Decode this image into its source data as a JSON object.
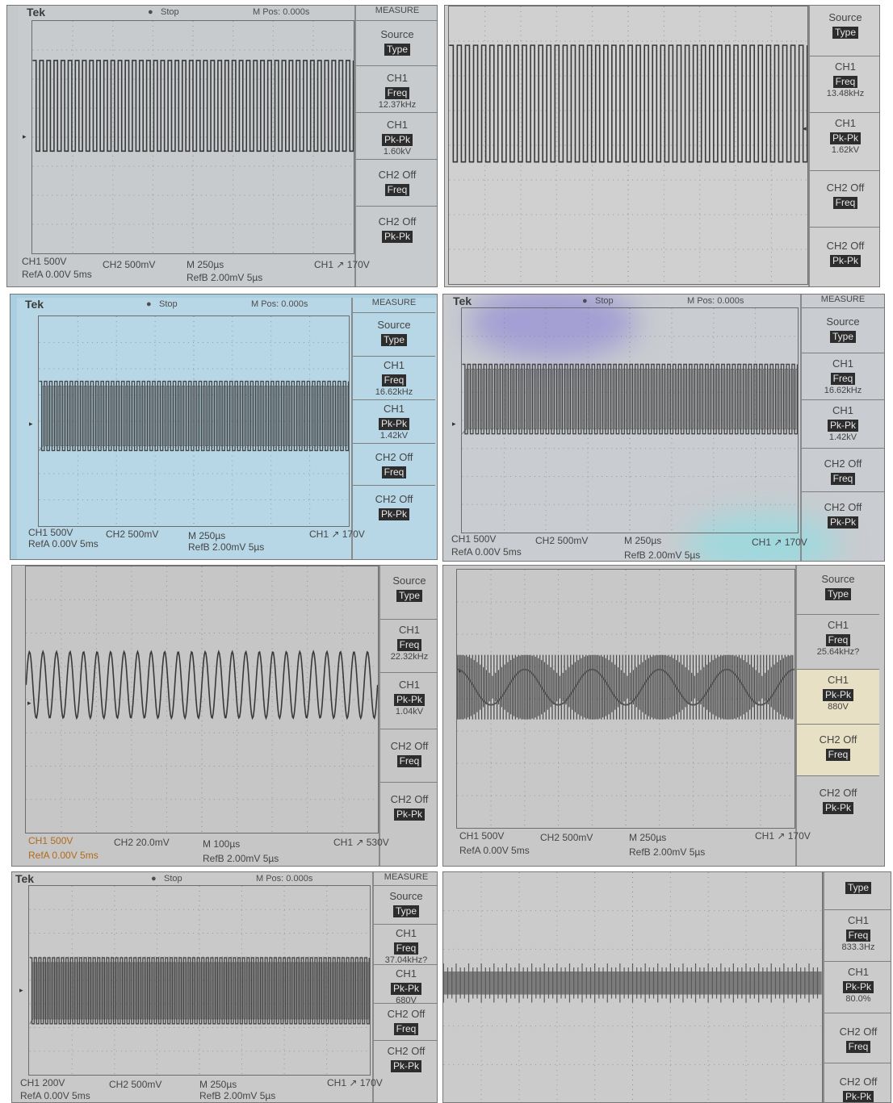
{
  "colors": {
    "panel_grey": "#c9c9c9",
    "panel_blue": "#b7d6e6",
    "trace": "#383838",
    "orange_text": "#b26a1c"
  },
  "panels": [
    {
      "brand": "Tek",
      "mode": "Stop",
      "mpos": "M Pos: 0.000s",
      "menu_title": "MEASURE",
      "menu": [
        {
          "label": "Source",
          "inv": "Type",
          "value": ""
        },
        {
          "label": "CH1",
          "inv": "Freq",
          "value": "12.37kHz"
        },
        {
          "label": "CH1",
          "inv": "Pk-Pk",
          "value": "1.60kV"
        },
        {
          "label": "CH2 Off",
          "inv": "Freq",
          "value": ""
        },
        {
          "label": "CH2 Off",
          "inv": "Pk-Pk",
          "value": ""
        }
      ],
      "status_line1": [
        "CH1 500V",
        "CH2 500mV",
        "M 250µs",
        "CH1 ↗ 170V"
      ],
      "status_line2": [
        "RefA 0.00V 5ms",
        "RefB 2.00mV 5µs"
      ],
      "icons": [
        "trigger-marker-icon",
        "run-stop-icon"
      ]
    },
    {
      "brand": "",
      "mode": "",
      "mpos": "",
      "menu_title": "",
      "menu": [
        {
          "label": "Source",
          "inv": "Type",
          "value": ""
        },
        {
          "label": "CH1",
          "inv": "Freq",
          "value": "13.48kHz"
        },
        {
          "label": "CH1",
          "inv": "Pk-Pk",
          "value": "1.62kV"
        },
        {
          "label": "CH2 Off",
          "inv": "Freq",
          "value": ""
        },
        {
          "label": "CH2 Off",
          "inv": "Pk-Pk",
          "value": ""
        }
      ],
      "status_line1": [],
      "status_line2": [],
      "icons": [
        "trigger-marker-icon"
      ]
    },
    {
      "brand": "Tek",
      "mode": "Stop",
      "mpos": "M Pos: 0.000s",
      "menu_title": "MEASURE",
      "menu": [
        {
          "label": "Source",
          "inv": "Type",
          "value": ""
        },
        {
          "label": "CH1",
          "inv": "Freq",
          "value": "16.62kHz"
        },
        {
          "label": "CH1",
          "inv": "Pk-Pk",
          "value": "1.42kV"
        },
        {
          "label": "CH2 Off",
          "inv": "Freq",
          "value": ""
        },
        {
          "label": "CH2 Off",
          "inv": "Pk-Pk",
          "value": ""
        }
      ],
      "status_line1": [
        "CH1 500V",
        "CH2 500mV",
        "M 250µs",
        "CH1 ↗ 170V"
      ],
      "status_line2": [
        "RefA 0.00V 5ms",
        "RefB 2.00mV 5µs"
      ],
      "icons": [
        "trigger-marker-icon",
        "run-stop-icon"
      ]
    },
    {
      "brand": "Tek",
      "mode": "Stop",
      "mpos": "M Pos: 0.000s",
      "menu_title": "MEASURE",
      "menu": [
        {
          "label": "Source",
          "inv": "Type",
          "value": ""
        },
        {
          "label": "CH1",
          "inv": "Freq",
          "value": "16.62kHz"
        },
        {
          "label": "CH1",
          "inv": "Pk-Pk",
          "value": "1.42kV"
        },
        {
          "label": "CH2 Off",
          "inv": "Freq",
          "value": ""
        },
        {
          "label": "CH2 Off",
          "inv": "Pk-Pk",
          "value": ""
        }
      ],
      "status_line1": [
        "CH1 500V",
        "CH2 500mV",
        "M 250µs",
        "CH1 ↗ 170V"
      ],
      "status_line2": [
        "RefA 0.00V 5ms",
        "RefB 2.00mV 5µs"
      ],
      "icons": [
        "trigger-marker-icon",
        "run-stop-icon"
      ]
    },
    {
      "brand": "",
      "mode": "",
      "mpos": "",
      "menu_title": "",
      "menu": [
        {
          "label": "Source",
          "inv": "Type",
          "value": ""
        },
        {
          "label": "CH1",
          "inv": "Freq",
          "value": "22.32kHz"
        },
        {
          "label": "CH1",
          "inv": "Pk-Pk",
          "value": "1.04kV"
        },
        {
          "label": "CH2 Off",
          "inv": "Freq",
          "value": ""
        },
        {
          "label": "CH2 Off",
          "inv": "Pk-Pk",
          "value": ""
        }
      ],
      "status_line1": [
        "CH1 500V",
        "CH2 20.0mV",
        "M 100µs",
        "CH1 ↗ 530V"
      ],
      "status_line2": [
        "RefA 0.00V 5ms",
        "RefB 2.00mV 5µs"
      ],
      "icons": [
        "trigger-marker-icon"
      ]
    },
    {
      "brand": "",
      "mode": "",
      "mpos": "",
      "menu_title": "",
      "menu": [
        {
          "label": "Source",
          "inv": "Type",
          "value": ""
        },
        {
          "label": "CH1",
          "inv": "Freq",
          "value": "25.64kHz?"
        },
        {
          "label": "CH1",
          "inv": "Pk-Pk",
          "value": "880V"
        },
        {
          "label": "CH2 Off",
          "inv": "Freq",
          "value": ""
        },
        {
          "label": "CH2 Off",
          "inv": "Pk-Pk",
          "value": ""
        }
      ],
      "status_line1": [
        "CH1 500V",
        "CH2 500mV",
        "M 250µs",
        "CH1 ↗ 170V"
      ],
      "status_line2": [
        "RefA 0.00V 5ms",
        "RefB 2.00mV 5µs"
      ],
      "icons": [
        "trigger-marker-icon"
      ]
    },
    {
      "brand": "Tek",
      "mode": "Stop",
      "mpos": "M Pos: 0.000s",
      "menu_title": "MEASURE",
      "menu": [
        {
          "label": "Source",
          "inv": "Type",
          "value": ""
        },
        {
          "label": "CH1",
          "inv": "Freq",
          "value": "37.04kHz?"
        },
        {
          "label": "CH1",
          "inv": "Pk-Pk",
          "value": "680V"
        },
        {
          "label": "CH2 Off",
          "inv": "Freq",
          "value": ""
        },
        {
          "label": "CH2 Off",
          "inv": "Pk-Pk",
          "value": ""
        }
      ],
      "status_line1": [
        "CH1 200V",
        "CH2 500mV",
        "M 250µs",
        "CH1 ↗ 170V"
      ],
      "status_line2": [
        "RefA 0.00V 5ms",
        "RefB 2.00mV 5µs"
      ],
      "icons": [
        "trigger-marker-icon",
        "run-stop-icon"
      ]
    },
    {
      "brand": "",
      "mode": "",
      "mpos": "",
      "menu_title": "",
      "menu": [
        {
          "label": "",
          "inv": "Type",
          "value": ""
        },
        {
          "label": "CH1",
          "inv": "Freq",
          "value": "833.3Hz"
        },
        {
          "label": "CH1",
          "inv": "Pk-Pk",
          "value": "80.0%"
        },
        {
          "label": "CH2 Off",
          "inv": "Freq",
          "value": ""
        },
        {
          "label": "CH2 Off",
          "inv": "Pk-Pk",
          "value": ""
        }
      ],
      "status_line1": [],
      "status_line2": [],
      "icons": []
    }
  ]
}
